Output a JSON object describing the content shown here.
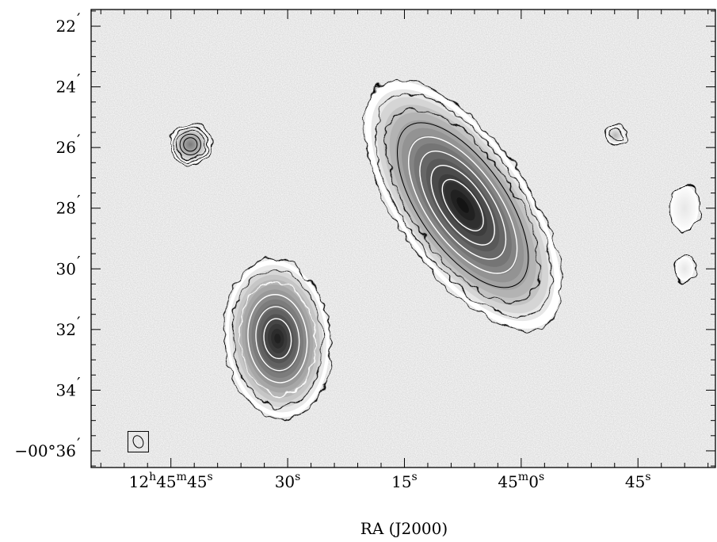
{
  "chart_data": {
    "type": "heatmap",
    "subtype": "greyscale radio image with contour overlay",
    "colormap": "greyscale",
    "xlabel": "RA (J2000)",
    "ylabel": "",
    "grid": false,
    "x_ticks": [
      {
        "value_s": 45,
        "label": {
          "h": "12",
          "m": "45",
          "s": "45"
        }
      },
      {
        "value_s": 30,
        "label": {
          "s": "30"
        }
      },
      {
        "value_s": 15,
        "label": {
          "s": "15"
        }
      },
      {
        "value_s": 0,
        "label": {
          "m": "45",
          "s": "0"
        }
      },
      {
        "value_s": -15,
        "label": {
          "s": "45"
        }
      }
    ],
    "y_ticks": [
      {
        "value_arcmin": 22,
        "label": "22"
      },
      {
        "value_arcmin": 24,
        "label": "24"
      },
      {
        "value_arcmin": 26,
        "label": "26"
      },
      {
        "value_arcmin": 28,
        "label": "28"
      },
      {
        "value_arcmin": 30,
        "label": "30"
      },
      {
        "value_arcmin": 32,
        "label": "32"
      },
      {
        "value_arcmin": 34,
        "label": "34"
      },
      {
        "value_arcmin": 36,
        "label": "−00°36"
      }
    ],
    "xlim_s": [
      55.25,
      -24.95
    ],
    "ylim_arcmin": [
      36.55,
      21.45
    ],
    "sources": [
      {
        "ra_s": 42.5,
        "dec_arcmin": 25.9,
        "major_arcmin": 1.3,
        "minor_arcmin": 1.3,
        "pa_deg": 0,
        "peak": 0.55,
        "contours": 5
      },
      {
        "ra_s": 7.5,
        "dec_arcmin": 27.9,
        "major_arcmin": 9.5,
        "minor_arcmin": 4.2,
        "pa_deg": 35,
        "peak": 1.0,
        "contours": 8
      },
      {
        "ra_s": 31.3,
        "dec_arcmin": 32.3,
        "major_arcmin": 5.2,
        "minor_arcmin": 3.4,
        "pa_deg": 6,
        "peak": 0.95,
        "contours": 6
      },
      {
        "ra_s": -12.1,
        "dec_arcmin": 25.6,
        "major_arcmin": 0.6,
        "minor_arcmin": 0.6,
        "pa_deg": 0,
        "peak": 0.3,
        "contours": 2
      },
      {
        "ra_s": -21.0,
        "dec_arcmin": 28.0,
        "major_arcmin": 1.5,
        "minor_arcmin": 0.9,
        "pa_deg": 0,
        "peak": 0.1,
        "contours": 1
      },
      {
        "ra_s": -21.0,
        "dec_arcmin": 30.0,
        "major_arcmin": 0.8,
        "minor_arcmin": 0.6,
        "pa_deg": 0,
        "peak": 0.1,
        "contours": 1
      }
    ],
    "beam": {
      "ra_s": 49.2,
      "dec_arcmin": 35.7
    }
  }
}
